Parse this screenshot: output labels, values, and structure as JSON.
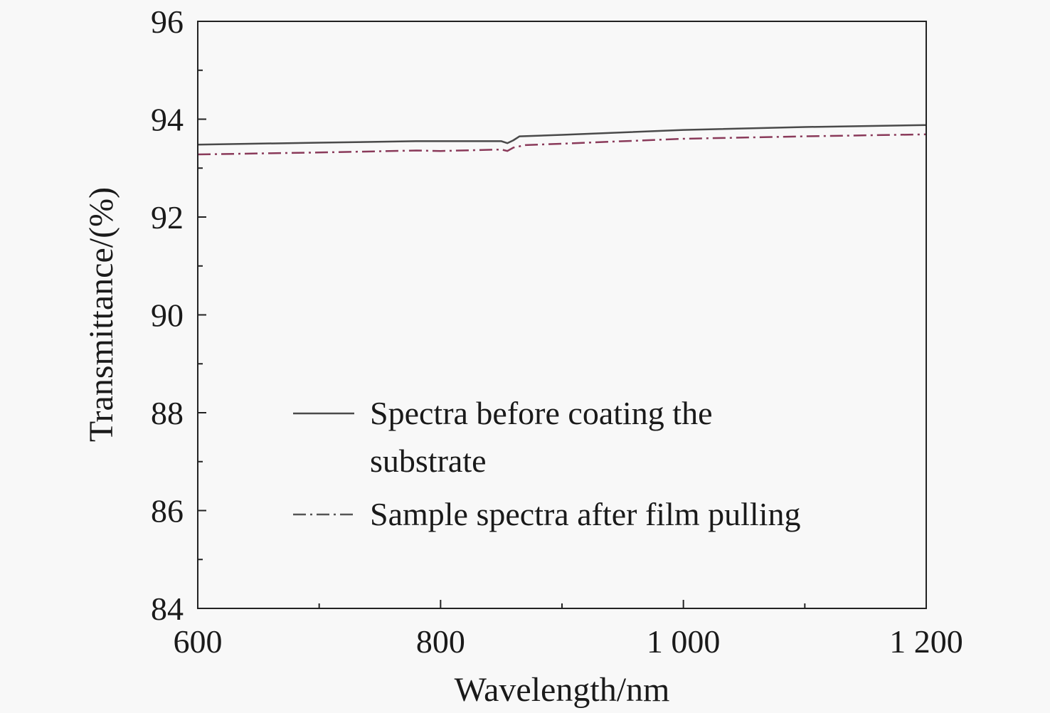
{
  "chart_data": {
    "type": "line",
    "title": "",
    "xlabel": "Wavelength/nm",
    "ylabel": "Transmittance/(%)",
    "xlim": [
      600,
      1200
    ],
    "ylim": [
      84,
      96
    ],
    "x_ticks": [
      600,
      800,
      1000,
      1200
    ],
    "x_tick_labels": [
      "600",
      "800",
      "1 000",
      "1 200"
    ],
    "x_minor_ticks": [
      700,
      900,
      1100
    ],
    "y_ticks": [
      84,
      86,
      88,
      90,
      92,
      94,
      96
    ],
    "y_tick_labels": [
      "84",
      "86",
      "88",
      "90",
      "92",
      "94",
      "96"
    ],
    "y_minor_ticks": [
      85,
      87,
      89,
      91,
      93,
      95
    ],
    "grid": false,
    "legend_position": "lower-center",
    "series": [
      {
        "name": "Spectra before coating the substrate",
        "legend_lines": [
          "Spectra before coating the",
          "substrate"
        ],
        "style": "solid",
        "color": "#4a4a4a",
        "x": [
          600,
          700,
          780,
          800,
          850,
          855,
          860,
          865,
          900,
          1000,
          1100,
          1200
        ],
        "y": [
          93.48,
          93.52,
          93.55,
          93.55,
          93.55,
          93.51,
          93.57,
          93.65,
          93.68,
          93.78,
          93.84,
          93.88
        ]
      },
      {
        "name": "Sample spectra after film pulling",
        "legend_lines": [
          "Sample spectra after film pulling"
        ],
        "style": "dash-dot",
        "color": "#8a3a5a",
        "x": [
          600,
          700,
          780,
          800,
          850,
          855,
          860,
          870,
          900,
          1000,
          1100,
          1200
        ],
        "y": [
          93.28,
          93.32,
          93.36,
          93.35,
          93.38,
          93.35,
          93.42,
          93.47,
          93.5,
          93.6,
          93.65,
          93.69
        ]
      }
    ]
  }
}
